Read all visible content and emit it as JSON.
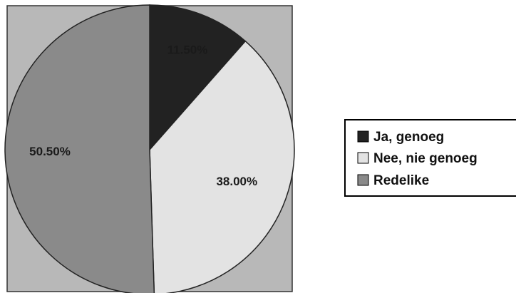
{
  "chart_data": {
    "type": "pie",
    "title": "",
    "slices": [
      {
        "label": "Ja, genoeg",
        "value": 11.5,
        "value_label": "11.50%",
        "color": "#222222"
      },
      {
        "label": "Nee, nie genoeg",
        "value": 38.0,
        "value_label": "38.00%",
        "color": "#e3e3e3"
      },
      {
        "label": "Redelike",
        "value": 50.5,
        "value_label": "50.50%",
        "color": "#8a8a8a"
      }
    ],
    "start": "12 o'clock",
    "direction": "clockwise",
    "legend_position": "right",
    "plot_background": "#b8b8b8"
  }
}
